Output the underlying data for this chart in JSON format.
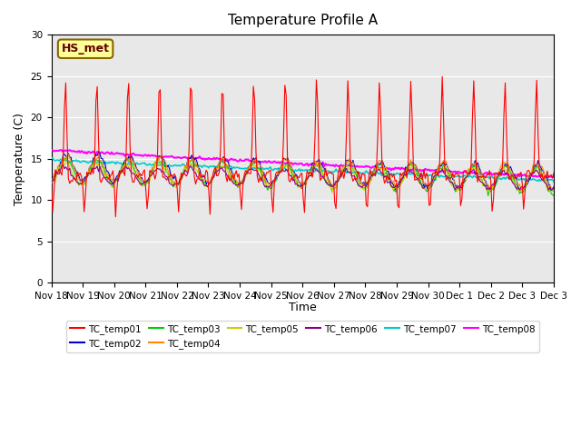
{
  "title": "Temperature Profile A",
  "xlabel": "Time",
  "ylabel": "Temperature (C)",
  "ylim": [
    0,
    30
  ],
  "annotation": "HS_met",
  "series_colors": {
    "TC_temp01": "#FF0000",
    "TC_temp02": "#0000CC",
    "TC_temp03": "#00CC00",
    "TC_temp04": "#FF8800",
    "TC_temp05": "#CCCC00",
    "TC_temp06": "#880088",
    "TC_temp07": "#00CCCC",
    "TC_temp08": "#FF00FF"
  },
  "bg_color": "#E8E8E8",
  "x_tick_labels": [
    "Nov 18",
    "Nov 19",
    "Nov 20",
    "Nov 21",
    "Nov 22",
    "Nov 23",
    "Nov 24",
    "Nov 25",
    "Nov 26",
    "Nov 27",
    "Nov 28",
    "Nov 29",
    "Nov 30",
    "Dec 1",
    "Dec 2",
    "Dec 3",
    "Dec 3"
  ]
}
